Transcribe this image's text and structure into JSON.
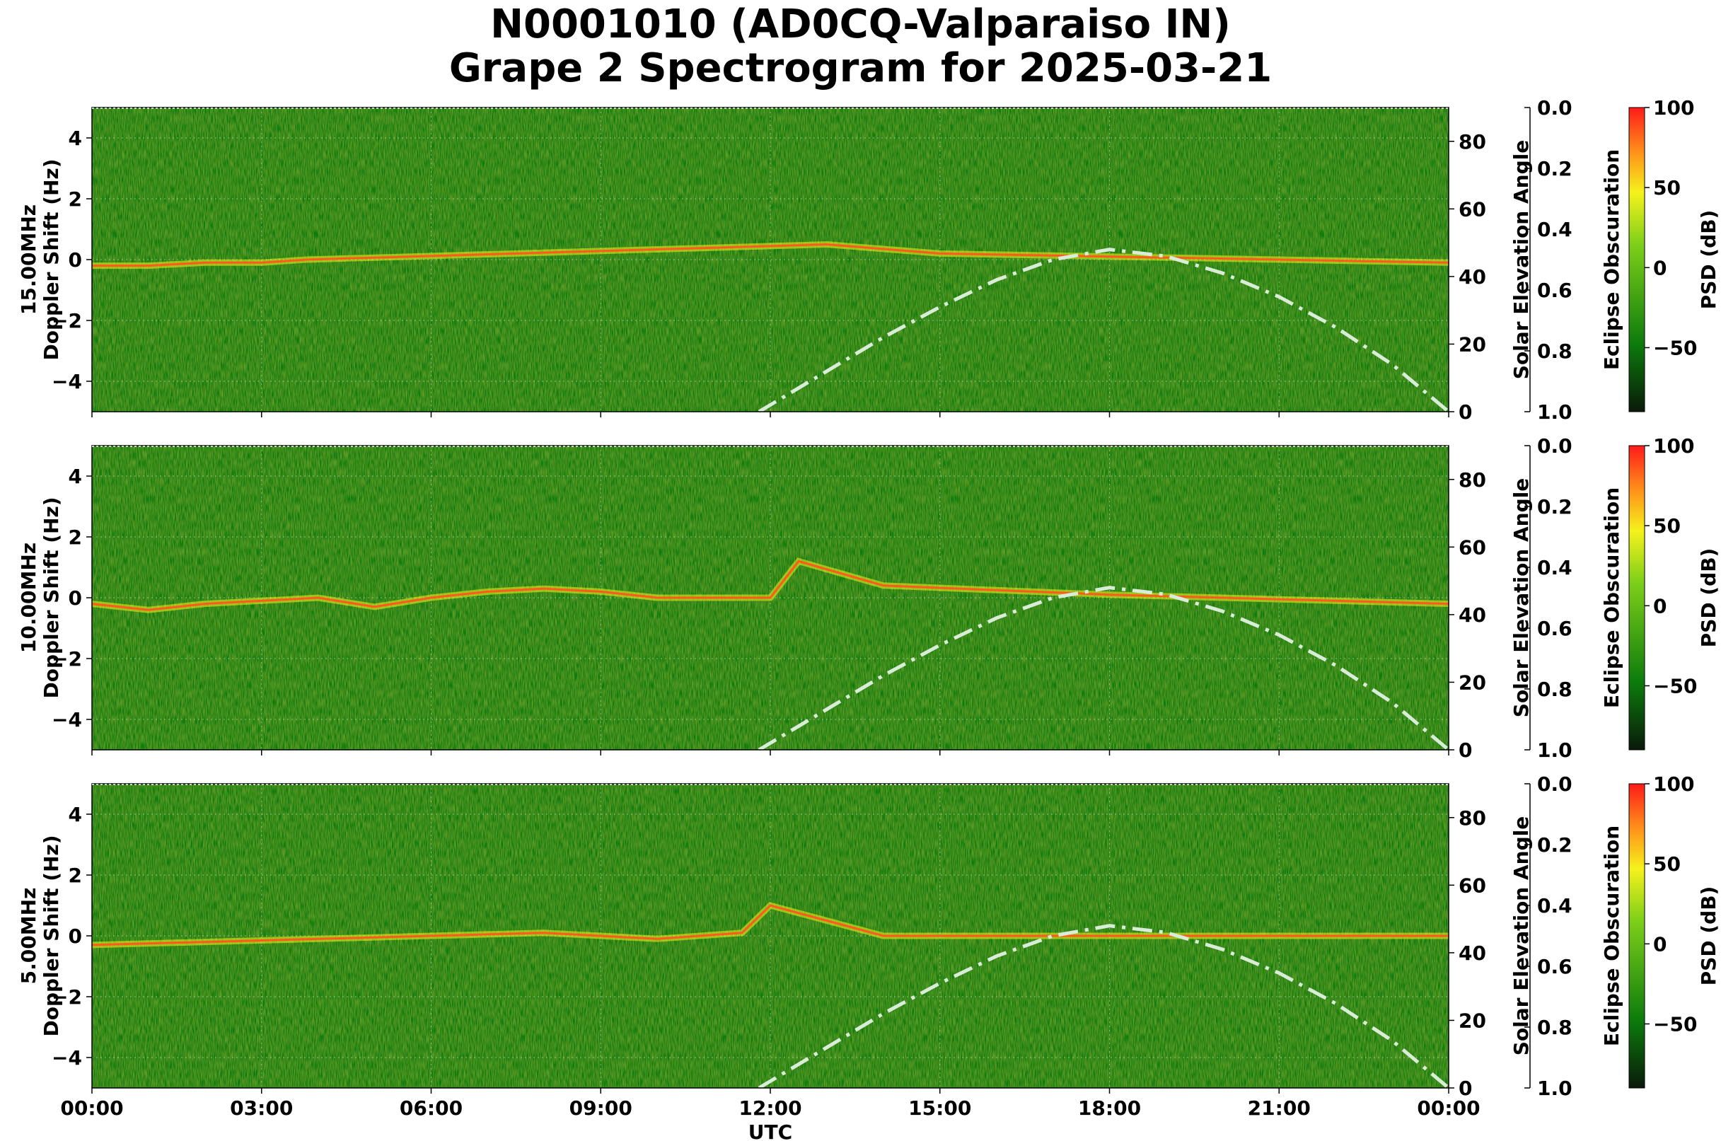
{
  "title_line1": "N0001010 (AD0CQ-Valparaiso IN)",
  "title_line2": "Grape 2 Spectrogram for 2025-03-21",
  "colors": {
    "spectro_bg": "#0b7d0b",
    "carrier": "#ff5a1e",
    "elevation_curve": "#d8ecd8",
    "cmap": [
      "#0a1a0a",
      "#0c7a0c",
      "#7ecf1a",
      "#f6f21c",
      "#ff8c1a",
      "#ff1a1a"
    ]
  },
  "chart_data": [
    {
      "type": "heatmap",
      "ylabel": "15.00MHz\nDoppler Shift (Hz)",
      "ylim": [
        -5,
        5
      ],
      "yticks": [
        "4",
        "2",
        "0",
        "−2",
        "−4"
      ],
      "xlim": [
        "00:00",
        "00:00"
      ],
      "right_axis_1": {
        "label": "Solar Elevation Angle",
        "ylim": [
          0,
          90
        ],
        "ticks": [
          "80",
          "60",
          "40",
          "20",
          "0"
        ]
      },
      "right_axis_2": {
        "label": "Eclipse Obscuration",
        "ylim": [
          1.0,
          0.0
        ],
        "ticks": [
          "0.0",
          "0.2",
          "0.4",
          "0.6",
          "0.8",
          "1.0"
        ]
      },
      "colorbar": {
        "label": "PSD (dB)",
        "range": [
          -90,
          100
        ],
        "ticks": [
          "100",
          "50",
          "0",
          "−50"
        ]
      },
      "carrier_doppler": {
        "x_hours": [
          0,
          1,
          2,
          3,
          3.8,
          13,
          15,
          18,
          21,
          24
        ],
        "y_hz": [
          -0.2,
          -0.2,
          -0.1,
          -0.1,
          0.0,
          0.5,
          0.2,
          0.1,
          0.0,
          -0.1
        ]
      },
      "solar_elevation": {
        "x_hours": [
          11.8,
          13,
          14,
          15,
          16,
          17,
          18,
          19,
          20,
          21,
          22,
          23,
          24
        ],
        "y_deg": [
          0,
          12,
          22,
          31,
          39,
          45,
          48,
          46,
          41,
          34,
          25,
          14,
          0
        ]
      }
    },
    {
      "type": "heatmap",
      "ylabel": "10.00MHz\nDoppler Shift (Hz)",
      "ylim": [
        -5,
        5
      ],
      "yticks": [
        "4",
        "2",
        "0",
        "−2",
        "−4"
      ],
      "xlim": [
        "00:00",
        "00:00"
      ],
      "right_axis_1": {
        "label": "Solar Elevation Angle",
        "ylim": [
          0,
          90
        ],
        "ticks": [
          "80",
          "60",
          "40",
          "20",
          "0"
        ]
      },
      "right_axis_2": {
        "label": "Eclipse Obscuration",
        "ylim": [
          1.0,
          0.0
        ],
        "ticks": [
          "0.0",
          "0.2",
          "0.4",
          "0.6",
          "0.8",
          "1.0"
        ]
      },
      "colorbar": {
        "label": "PSD (dB)",
        "range": [
          -90,
          100
        ],
        "ticks": [
          "100",
          "50",
          "0",
          "−50"
        ]
      },
      "carrier_doppler": {
        "x_hours": [
          0,
          1,
          2,
          3,
          4,
          5,
          6,
          7,
          8,
          9,
          10,
          12,
          12.5,
          14,
          18,
          24
        ],
        "y_hz": [
          -0.2,
          -0.4,
          -0.2,
          -0.1,
          0.0,
          -0.3,
          0.0,
          0.2,
          0.3,
          0.2,
          0.0,
          0.0,
          1.2,
          0.4,
          0.1,
          -0.2
        ]
      },
      "solar_elevation": {
        "x_hours": [
          11.8,
          13,
          14,
          15,
          16,
          17,
          18,
          19,
          20,
          21,
          22,
          23,
          24
        ],
        "y_deg": [
          0,
          12,
          22,
          31,
          39,
          45,
          48,
          46,
          41,
          34,
          25,
          14,
          0
        ]
      }
    },
    {
      "type": "heatmap",
      "ylabel": "5.00MHz\nDoppler Shift (Hz)",
      "ylim": [
        -5,
        5
      ],
      "yticks": [
        "4",
        "2",
        "0",
        "−2",
        "−4"
      ],
      "xlim": [
        "00:00",
        "00:00"
      ],
      "xlabel": "UTC",
      "xticks": [
        "00:00",
        "03:00",
        "06:00",
        "09:00",
        "12:00",
        "15:00",
        "18:00",
        "21:00",
        "00:00"
      ],
      "right_axis_1": {
        "label": "Solar Elevation Angle",
        "ylim": [
          0,
          90
        ],
        "ticks": [
          "80",
          "60",
          "40",
          "20",
          "0"
        ]
      },
      "right_axis_2": {
        "label": "Eclipse Obscuration",
        "ylim": [
          1.0,
          0.0
        ],
        "ticks": [
          "0.0",
          "0.2",
          "0.4",
          "0.6",
          "0.8",
          "1.0"
        ]
      },
      "colorbar": {
        "label": "PSD (dB)",
        "range": [
          -90,
          100
        ],
        "ticks": [
          "100",
          "50",
          "0",
          "−50"
        ]
      },
      "carrier_doppler": {
        "x_hours": [
          0,
          2,
          4,
          6,
          8,
          10,
          11.5,
          12,
          13,
          14,
          18,
          24
        ],
        "y_hz": [
          -0.3,
          -0.2,
          -0.1,
          0.0,
          0.1,
          -0.1,
          0.1,
          1.0,
          0.5,
          0.0,
          0.0,
          0.0
        ]
      },
      "solar_elevation": {
        "x_hours": [
          11.8,
          13,
          14,
          15,
          16,
          17,
          18,
          19,
          20,
          21,
          22,
          23,
          24
        ],
        "y_deg": [
          0,
          12,
          22,
          31,
          39,
          45,
          48,
          46,
          41,
          34,
          25,
          14,
          0
        ]
      }
    }
  ]
}
